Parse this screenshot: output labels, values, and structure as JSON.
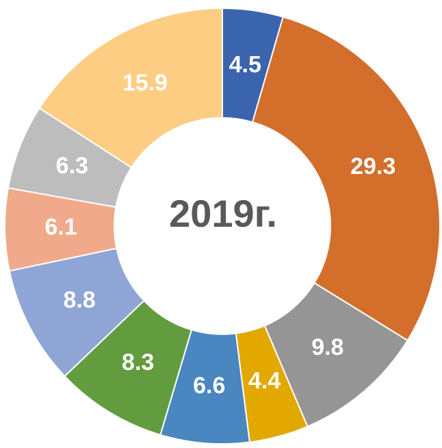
{
  "chart_data": {
    "type": "donut",
    "title": "2019г.",
    "values": [
      4.5,
      29.3,
      9.8,
      4.4,
      6.6,
      8.3,
      8.8,
      6.1,
      6.3,
      15.9
    ],
    "colors": [
      "#3b64ae",
      "#d36e2b",
      "#959595",
      "#e2a800",
      "#4a86c0",
      "#629c3f",
      "#8fa5d6",
      "#f0a98a",
      "#bdbdbd",
      "#fdcd84"
    ]
  }
}
